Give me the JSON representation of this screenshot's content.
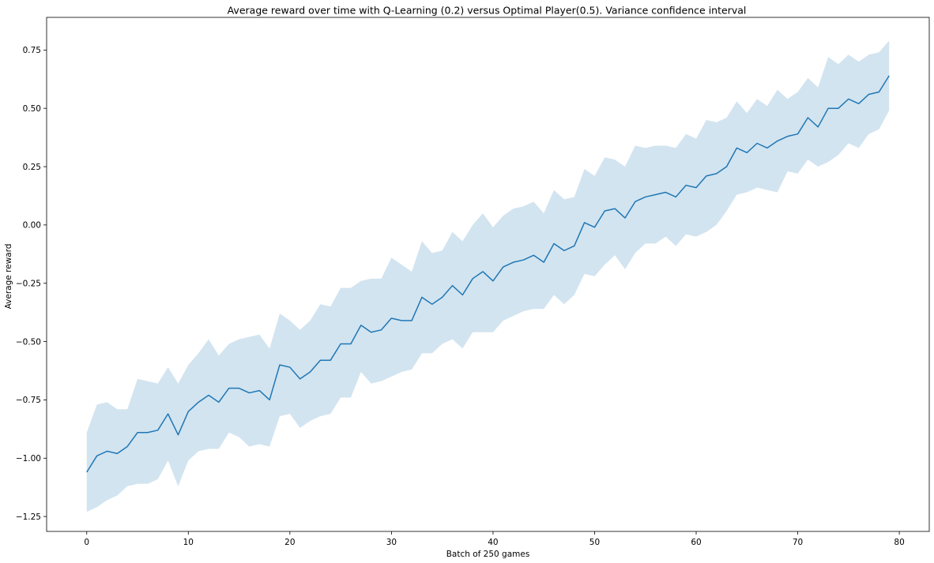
{
  "chart_data": {
    "type": "line",
    "title": "Average reward over time with Q-Learning (0.2) versus Optimal Player(0.5). Variance confidence interval",
    "xlabel": "Batch of 250 games",
    "ylabel": "Average reward",
    "xlim": [
      -3.95,
      82.95
    ],
    "ylim": [
      -1.314,
      0.89
    ],
    "xticks": [
      0,
      10,
      20,
      30,
      40,
      50,
      60,
      70,
      80
    ],
    "xtick_labels": [
      "0",
      "10",
      "20",
      "30",
      "40",
      "50",
      "60",
      "70",
      "80"
    ],
    "yticks": [
      -1.25,
      -1.0,
      -0.75,
      -0.5,
      -0.25,
      0.0,
      0.25,
      0.5,
      0.75
    ],
    "ytick_labels": [
      "−1.25",
      "−1.00",
      "−0.75",
      "−0.50",
      "−0.25",
      "0.00",
      "0.25",
      "0.50",
      "0.75"
    ],
    "grid": false,
    "line_color": "#1f77b4",
    "band_color": "#1f77b4",
    "band_opacity": 0.2,
    "x": [
      0,
      1,
      2,
      3,
      4,
      5,
      6,
      7,
      8,
      9,
      10,
      11,
      12,
      13,
      14,
      15,
      16,
      17,
      18,
      19,
      20,
      21,
      22,
      23,
      24,
      25,
      26,
      27,
      28,
      29,
      30,
      31,
      32,
      33,
      34,
      35,
      36,
      37,
      38,
      39,
      40,
      41,
      42,
      43,
      44,
      45,
      46,
      47,
      48,
      49,
      50,
      51,
      52,
      53,
      54,
      55,
      56,
      57,
      58,
      59,
      60,
      61,
      62,
      63,
      64,
      65,
      66,
      67,
      68,
      69,
      70,
      71,
      72,
      73,
      74,
      75,
      76,
      77,
      78,
      79
    ],
    "mean": [
      -1.06,
      -0.99,
      -0.97,
      -0.98,
      -0.95,
      -0.89,
      -0.89,
      -0.88,
      -0.81,
      -0.9,
      -0.8,
      -0.76,
      -0.73,
      -0.76,
      -0.7,
      -0.7,
      -0.72,
      -0.71,
      -0.75,
      -0.6,
      -0.61,
      -0.66,
      -0.63,
      -0.58,
      -0.58,
      -0.51,
      -0.51,
      -0.43,
      -0.46,
      -0.45,
      -0.4,
      -0.41,
      -0.41,
      -0.31,
      -0.34,
      -0.31,
      -0.26,
      -0.3,
      -0.23,
      -0.2,
      -0.24,
      -0.18,
      -0.16,
      -0.15,
      -0.13,
      -0.16,
      -0.08,
      -0.11,
      -0.09,
      0.01,
      -0.01,
      0.06,
      0.07,
      0.03,
      0.1,
      0.12,
      0.13,
      0.14,
      0.12,
      0.17,
      0.16,
      0.21,
      0.22,
      0.25,
      0.33,
      0.31,
      0.35,
      0.33,
      0.36,
      0.38,
      0.39,
      0.46,
      0.42,
      0.5,
      0.5,
      0.54,
      0.52,
      0.56,
      0.57,
      0.64
    ],
    "upper": [
      -0.89,
      -0.77,
      -0.76,
      -0.79,
      -0.79,
      -0.66,
      -0.67,
      -0.68,
      -0.61,
      -0.68,
      -0.6,
      -0.55,
      -0.49,
      -0.56,
      -0.51,
      -0.49,
      -0.48,
      -0.47,
      -0.53,
      -0.38,
      -0.41,
      -0.45,
      -0.41,
      -0.34,
      -0.35,
      -0.27,
      -0.27,
      -0.24,
      -0.23,
      -0.23,
      -0.14,
      -0.17,
      -0.2,
      -0.07,
      -0.12,
      -0.11,
      -0.03,
      -0.07,
      0.0,
      0.05,
      -0.01,
      0.04,
      0.07,
      0.08,
      0.1,
      0.05,
      0.15,
      0.11,
      0.12,
      0.24,
      0.21,
      0.29,
      0.28,
      0.25,
      0.34,
      0.33,
      0.34,
      0.34,
      0.33,
      0.39,
      0.37,
      0.45,
      0.44,
      0.46,
      0.53,
      0.48,
      0.54,
      0.51,
      0.58,
      0.54,
      0.57,
      0.63,
      0.59,
      0.72,
      0.69,
      0.73,
      0.7,
      0.73,
      0.74,
      0.79
    ],
    "lower": [
      -1.23,
      -1.21,
      -1.18,
      -1.16,
      -1.12,
      -1.11,
      -1.11,
      -1.09,
      -1.01,
      -1.12,
      -1.01,
      -0.97,
      -0.96,
      -0.96,
      -0.89,
      -0.91,
      -0.95,
      -0.94,
      -0.95,
      -0.82,
      -0.81,
      -0.87,
      -0.84,
      -0.82,
      -0.81,
      -0.74,
      -0.74,
      -0.63,
      -0.68,
      -0.67,
      -0.65,
      -0.63,
      -0.62,
      -0.55,
      -0.55,
      -0.51,
      -0.49,
      -0.53,
      -0.46,
      -0.46,
      -0.46,
      -0.41,
      -0.39,
      -0.37,
      -0.36,
      -0.36,
      -0.3,
      -0.34,
      -0.3,
      -0.21,
      -0.22,
      -0.17,
      -0.13,
      -0.19,
      -0.12,
      -0.08,
      -0.08,
      -0.05,
      -0.09,
      -0.04,
      -0.05,
      -0.03,
      0.0,
      0.06,
      0.13,
      0.14,
      0.16,
      0.15,
      0.14,
      0.23,
      0.22,
      0.28,
      0.25,
      0.27,
      0.3,
      0.35,
      0.33,
      0.39,
      0.41,
      0.49
    ]
  }
}
